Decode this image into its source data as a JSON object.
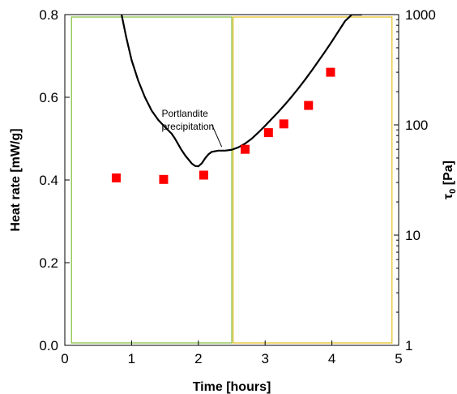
{
  "chart_data": {
    "type": "line",
    "xlabel": "Time [hours]",
    "ylabel_left": "Heat rate [mW/g]",
    "ylabel_right_main": "τ",
    "ylabel_right_sub": "0",
    "ylabel_right_unit": " [Pa]",
    "xlim": [
      0,
      5
    ],
    "ylim_left": [
      0,
      0.8
    ],
    "ylim_right": [
      1,
      1000
    ],
    "right_scale": "log",
    "x_ticks": [
      "0",
      "1",
      "2",
      "3",
      "4",
      "5"
    ],
    "y_left_ticks": [
      "0.0",
      "0.2",
      "0.4",
      "0.6",
      "0.8"
    ],
    "y_right_ticks": [
      "1",
      "10",
      "100",
      "1000"
    ],
    "grid": false,
    "series": [
      {
        "kind": "line",
        "axis": "left",
        "color": "#000000",
        "x": [
          0.85,
          0.92,
          1.0,
          1.1,
          1.2,
          1.3,
          1.4,
          1.5,
          1.6,
          1.65,
          1.7,
          1.75,
          1.8,
          1.85,
          1.9,
          1.95,
          2.0,
          2.05,
          2.1,
          2.15,
          2.2,
          2.3,
          2.4,
          2.5,
          2.6,
          2.7,
          2.8,
          2.9,
          3.0,
          3.1,
          3.2,
          3.3,
          3.4,
          3.5,
          3.6,
          3.7,
          3.8,
          3.9,
          4.0,
          4.1,
          4.2,
          4.3,
          4.4,
          4.45
        ],
        "y": [
          0.8,
          0.745,
          0.69,
          0.64,
          0.6,
          0.568,
          0.545,
          0.528,
          0.512,
          0.5,
          0.486,
          0.472,
          0.46,
          0.45,
          0.44,
          0.434,
          0.433,
          0.44,
          0.452,
          0.462,
          0.468,
          0.471,
          0.471,
          0.473,
          0.479,
          0.488,
          0.5,
          0.515,
          0.531,
          0.548,
          0.565,
          0.583,
          0.602,
          0.622,
          0.643,
          0.665,
          0.688,
          0.711,
          0.735,
          0.76,
          0.785,
          0.81,
          0.835,
          0.848
        ]
      },
      {
        "kind": "scatter",
        "axis": "right",
        "color": "#ff0000",
        "marker": "square",
        "x": [
          0.77,
          1.48,
          2.08,
          2.7,
          3.05,
          3.28,
          3.65,
          3.98
        ],
        "y": [
          33,
          32,
          35,
          60,
          85,
          102,
          150,
          300
        ]
      }
    ],
    "annotations": [
      {
        "lines": [
          "Portlandite",
          "precipitation"
        ],
        "pointer_from": [
          2.2,
          0.535
        ],
        "pointer_to": [
          2.35,
          0.48
        ]
      }
    ],
    "regions": [
      {
        "x_range": [
          0.1,
          2.5
        ],
        "color": "#8bc34a"
      },
      {
        "x_range": [
          2.52,
          4.9
        ],
        "color": "#e6c229"
      }
    ]
  }
}
